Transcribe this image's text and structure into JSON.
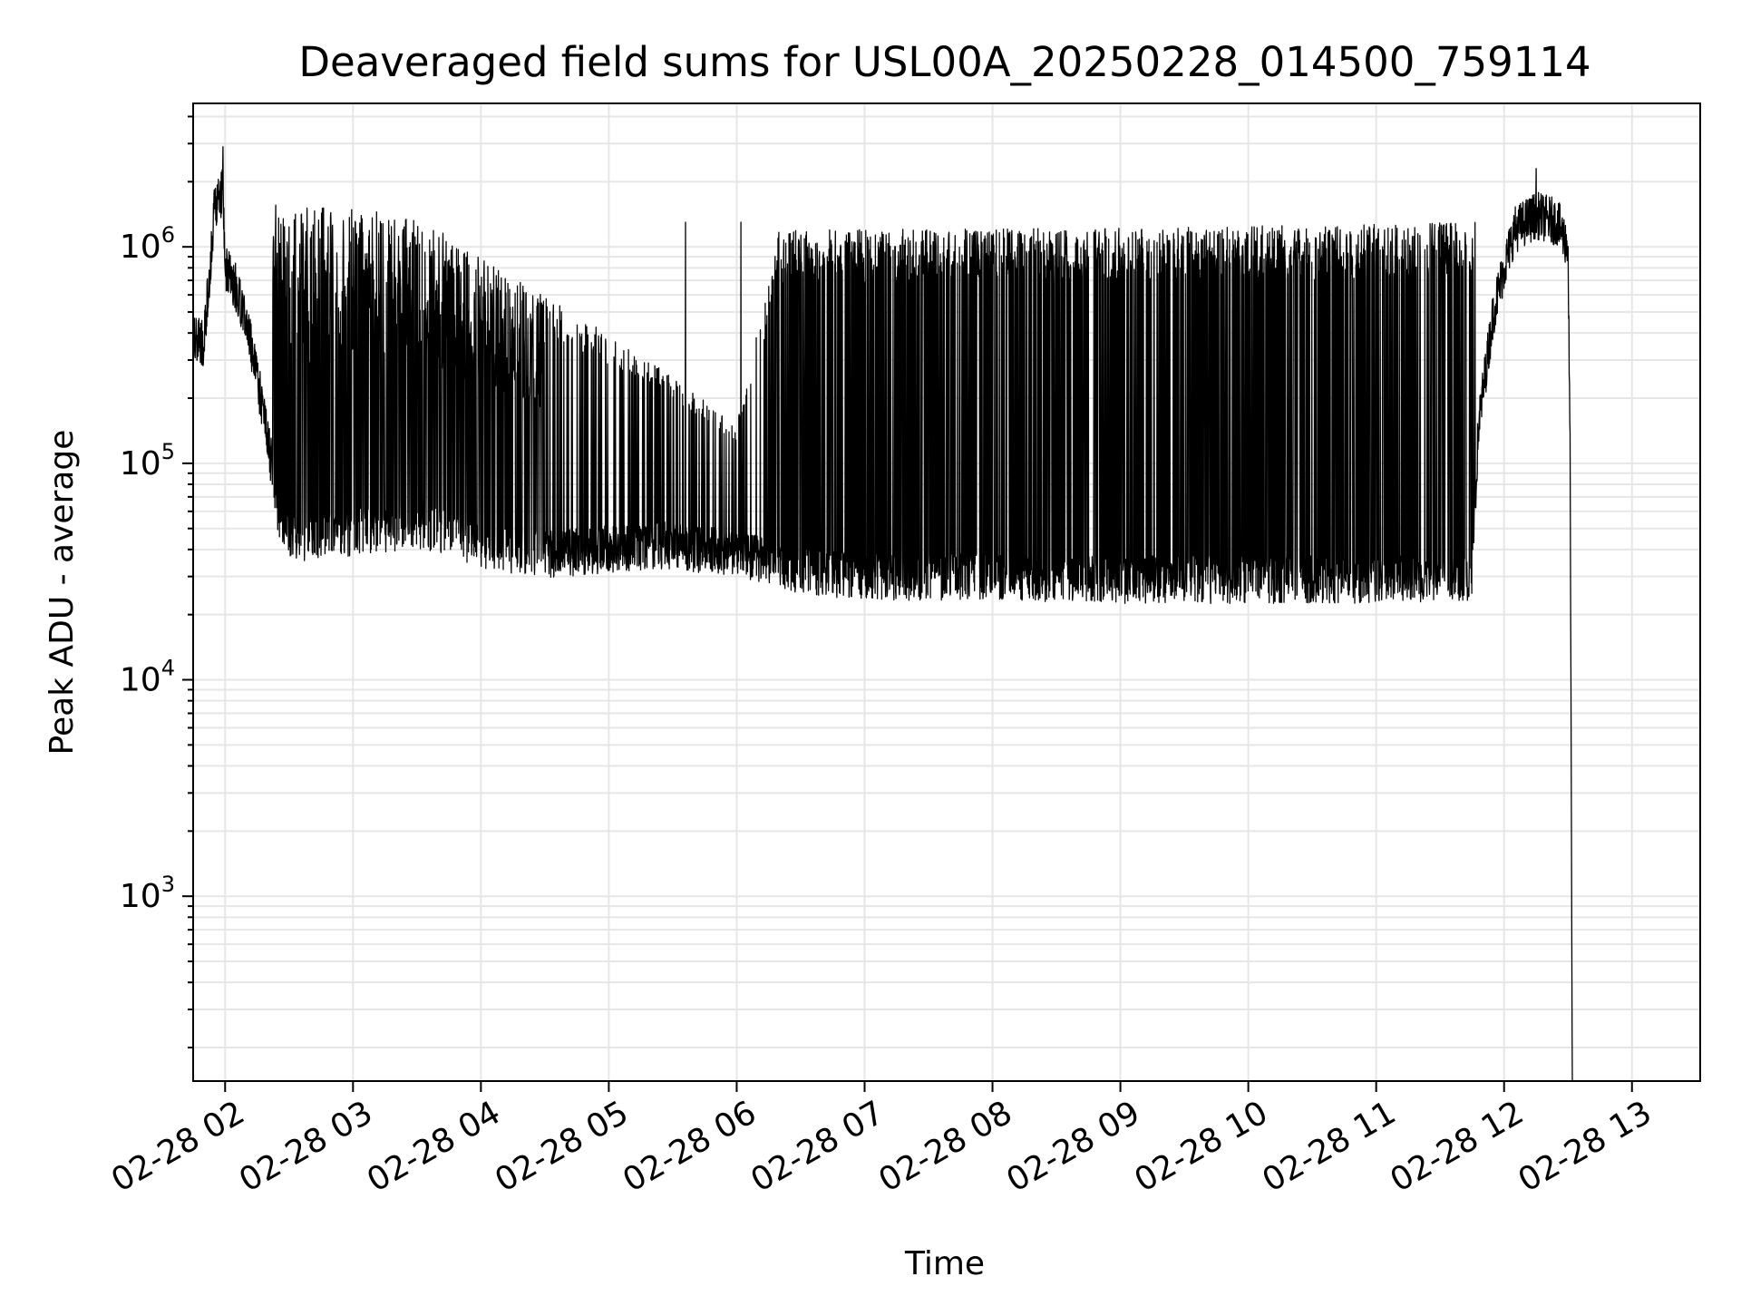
{
  "chart_data": {
    "type": "line",
    "title": "Deaveraged field sums for USL00A_20250228_014500_759114",
    "xlabel": "Time",
    "ylabel": "Peak ADU - average",
    "yscale": "log",
    "grid": true,
    "legend": "none",
    "line_color": "#000000",
    "grid_color": "#e6e6e6",
    "x_time_range": [
      "2025-02-28 01:45",
      "2025-02-28 13:32"
    ],
    "xlim": [
      "2025-02-28 01:45",
      "2025-02-28 13:32"
    ],
    "ylim": [
      140,
      4600000
    ],
    "x_ticks": [
      {
        "value": "2025-02-28 02:00",
        "label": "02-28 02"
      },
      {
        "value": "2025-02-28 03:00",
        "label": "02-28 03"
      },
      {
        "value": "2025-02-28 04:00",
        "label": "02-28 04"
      },
      {
        "value": "2025-02-28 05:00",
        "label": "02-28 05"
      },
      {
        "value": "2025-02-28 06:00",
        "label": "02-28 06"
      },
      {
        "value": "2025-02-28 07:00",
        "label": "02-28 07"
      },
      {
        "value": "2025-02-28 08:00",
        "label": "02-28 08"
      },
      {
        "value": "2025-02-28 09:00",
        "label": "02-28 09"
      },
      {
        "value": "2025-02-28 10:00",
        "label": "02-28 10"
      },
      {
        "value": "2025-02-28 11:00",
        "label": "02-28 11"
      },
      {
        "value": "2025-02-28 12:00",
        "label": "02-28 12"
      },
      {
        "value": "2025-02-28 13:00",
        "label": "02-28 13"
      }
    ],
    "y_ticks": [
      {
        "value": 1000,
        "base": "10",
        "exp": "3"
      },
      {
        "value": 10000,
        "base": "10",
        "exp": "4"
      },
      {
        "value": 100000,
        "base": "10",
        "exp": "5"
      },
      {
        "value": 1000000,
        "base": "10",
        "exp": "6"
      }
    ],
    "series_shape": {
      "baseline": [
        [
          "2025-02-28 01:45",
          400000
        ],
        [
          "2025-02-28 01:50",
          350000
        ],
        [
          "2025-02-28 01:55",
          1500000
        ],
        [
          "2025-02-28 01:59",
          1800000
        ],
        [
          "2025-02-28 02:00",
          800000
        ],
        [
          "2025-02-28 02:05",
          650000
        ],
        [
          "2025-02-28 02:10",
          450000
        ],
        [
          "2025-02-28 02:15",
          250000
        ],
        [
          "2025-02-28 02:20",
          130000
        ],
        [
          "2025-02-28 02:25",
          60000
        ],
        [
          "2025-02-28 02:30",
          45000
        ],
        [
          "2025-02-28 03:00",
          48000
        ],
        [
          "2025-02-28 03:30",
          52000
        ],
        [
          "2025-02-28 04:00",
          42000
        ],
        [
          "2025-02-28 04:30",
          38000
        ],
        [
          "2025-02-28 05:00",
          40000
        ],
        [
          "2025-02-28 05:30",
          42000
        ],
        [
          "2025-02-28 06:00",
          38000
        ],
        [
          "2025-02-28 06:30",
          32000
        ],
        [
          "2025-02-28 07:00",
          30000
        ],
        [
          "2025-02-28 08:00",
          30000
        ],
        [
          "2025-02-28 09:00",
          29000
        ],
        [
          "2025-02-28 10:00",
          29000
        ],
        [
          "2025-02-28 11:00",
          29000
        ],
        [
          "2025-02-28 11:45",
          30000
        ],
        [
          "2025-02-28 11:48",
          150000
        ],
        [
          "2025-02-28 11:55",
          500000
        ],
        [
          "2025-02-28 12:00",
          800000
        ],
        [
          "2025-02-28 12:05",
          1200000
        ],
        [
          "2025-02-28 12:15",
          1400000
        ],
        [
          "2025-02-28 12:25",
          1300000
        ],
        [
          "2025-02-28 12:30",
          1000000
        ],
        [
          "2025-02-28 12:31",
          100000
        ],
        [
          "2025-02-28 12:32",
          140
        ]
      ],
      "spike_peak": [
        [
          "2025-02-28 02:25",
          1600000
        ],
        [
          "2025-02-28 03:00",
          1500000
        ],
        [
          "2025-02-28 03:30",
          1400000
        ],
        [
          "2025-02-28 04:00",
          900000
        ],
        [
          "2025-02-28 04:30",
          600000
        ],
        [
          "2025-02-28 05:00",
          400000
        ],
        [
          "2025-02-28 05:30",
          250000
        ],
        [
          "2025-02-28 06:00",
          150000
        ],
        [
          "2025-02-28 06:20",
          1200000
        ],
        [
          "2025-02-28 07:00",
          1200000
        ],
        [
          "2025-02-28 10:00",
          1250000
        ],
        [
          "2025-02-28 11:45",
          1300000
        ]
      ]
    },
    "annotated_spikes": [
      {
        "time": "2025-02-28 01:59",
        "value": 2900000
      },
      {
        "time": "2025-02-28 05:36",
        "value": 1300000
      },
      {
        "time": "2025-02-28 06:02",
        "value": 1300000
      },
      {
        "time": "2025-02-28 12:15",
        "value": 2300000
      }
    ]
  }
}
